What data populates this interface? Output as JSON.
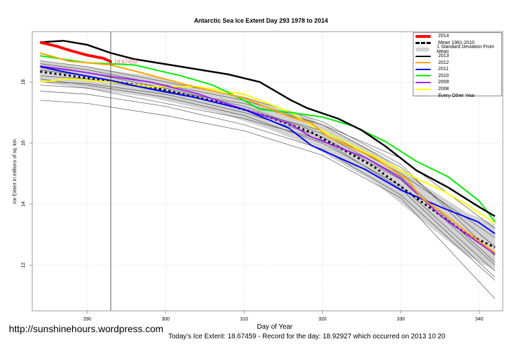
{
  "chart_data": {
    "type": "line",
    "title": "Antarctic Sea Ice Extent Day 293 1978 to 2014",
    "xlabel": "Day of Year",
    "ylabel": "Ice Extent in millions of sq. km.",
    "xlim": [
      283,
      343
    ],
    "ylim": [
      10.5,
      19.65
    ],
    "xticks": [
      290,
      300,
      310,
      320,
      330,
      340
    ],
    "yticks": [
      12,
      14,
      16,
      18
    ],
    "grid": true,
    "legend_position": "top-right",
    "current_day": 293,
    "current_value_label": "18.67459",
    "series": [
      {
        "name": "2014",
        "color": "#ff0000",
        "width": 4,
        "x": [
          284,
          286,
          288,
          290,
          292,
          293
        ],
        "y": [
          19.3,
          19.18,
          19.02,
          18.88,
          18.78,
          18.67
        ]
      },
      {
        "name": "2013",
        "color": "#000000",
        "width": 2.5,
        "x": [
          284,
          287,
          290,
          293,
          296,
          302,
          308,
          312,
          316,
          318,
          322,
          325,
          328,
          332,
          336,
          340,
          342
        ],
        "y": [
          19.3,
          19.35,
          19.22,
          18.95,
          18.75,
          18.5,
          18.25,
          18.0,
          17.4,
          17.15,
          16.8,
          16.42,
          15.9,
          15.1,
          14.55,
          13.9,
          13.6
        ]
      },
      {
        "name": "2012",
        "color": "#ffa500",
        "width": 2,
        "x": [
          284,
          287.7,
          293,
          298,
          304,
          310,
          315.7,
          318.6,
          320.7,
          326.6,
          331,
          332.5,
          335.4,
          338.3,
          342
        ],
        "y": [
          18.95,
          18.68,
          18.56,
          18.23,
          17.82,
          17.48,
          16.87,
          16.65,
          16.2,
          15.52,
          14.77,
          14.23,
          13.7,
          13.1,
          12.4
        ]
      },
      {
        "name": "2011",
        "color": "#0000ff",
        "width": 2,
        "x": [
          284,
          287.7,
          293,
          298,
          304,
          310,
          315.7,
          318.6,
          325.5,
          330,
          335.4,
          339.8,
          342
        ],
        "y": [
          18.5,
          18.3,
          18.05,
          17.77,
          17.48,
          17.1,
          16.49,
          15.92,
          15.13,
          14.46,
          13.87,
          13.42,
          13.03
        ]
      },
      {
        "name": "2010",
        "color": "#00ee00",
        "width": 2,
        "x": [
          284,
          290,
          296,
          302,
          306,
          310,
          312,
          316,
          320,
          324,
          328,
          332,
          336,
          340,
          342
        ],
        "y": [
          18.86,
          18.63,
          18.56,
          18.2,
          17.9,
          17.4,
          17.1,
          17.0,
          16.85,
          16.55,
          16.05,
          15.4,
          14.9,
          14.1,
          13.42
        ]
      },
      {
        "name": "2009",
        "color": "#a020f0",
        "width": 2,
        "x": [
          284,
          287.7,
          293,
          298,
          304,
          310,
          315.7,
          318.6,
          325.5,
          330,
          335.4,
          342
        ],
        "y": [
          18.52,
          18.4,
          18.18,
          18.0,
          17.62,
          17.1,
          16.65,
          16.2,
          15.52,
          14.84,
          13.55,
          12.36
        ]
      },
      {
        "name": "2008",
        "color": "#ffff00",
        "width": 2,
        "x": [
          284,
          287.7,
          293,
          298,
          304,
          310,
          315.7,
          318.6,
          326.6,
          332.5,
          335.4,
          338.3,
          342
        ],
        "y": [
          18.0,
          18.1,
          18.0,
          17.85,
          17.85,
          17.6,
          17.03,
          16.58,
          15.56,
          14.77,
          14.43,
          14.0,
          13.37
        ]
      }
    ],
    "mean": {
      "name": "Mean 1981-2010",
      "x": [
        284,
        298,
        307,
        313,
        318.6,
        326.6,
        332.5,
        338.3,
        342
      ],
      "y": [
        18.34,
        17.85,
        17.32,
        16.87,
        16.35,
        15.22,
        14.1,
        13.03,
        12.58
      ],
      "sd": [
        0.35,
        0.35,
        0.35,
        0.4,
        0.45,
        0.5,
        0.6,
        0.7,
        0.75
      ]
    },
    "sd_label": "1 Standard Deviation From Mean",
    "other_years_label": "Every Other Year",
    "other_years": [
      {
        "x": [
          284,
          290,
          300,
          310,
          320,
          330,
          342
        ],
        "y": [
          17.4,
          17.3,
          16.9,
          16.4,
          15.6,
          14.2,
          10.9
        ]
      },
      {
        "x": [
          284,
          290,
          300,
          310,
          320,
          330,
          342
        ],
        "y": [
          17.7,
          17.6,
          17.2,
          16.6,
          15.8,
          14.3,
          11.5
        ]
      },
      {
        "x": [
          284,
          290,
          300,
          310,
          320,
          330,
          342
        ],
        "y": [
          18.1,
          17.9,
          17.5,
          16.9,
          16.0,
          14.6,
          11.8
        ]
      },
      {
        "x": [
          284,
          290,
          300,
          310,
          320,
          330,
          342
        ],
        "y": [
          18.5,
          18.3,
          17.8,
          17.2,
          16.3,
          14.9,
          12.1
        ]
      },
      {
        "x": [
          284,
          290,
          300,
          310,
          320,
          330,
          342
        ],
        "y": [
          18.6,
          18.4,
          17.9,
          17.4,
          16.6,
          15.2,
          12.6
        ]
      },
      {
        "x": [
          284,
          290,
          300,
          310,
          320,
          330,
          342
        ],
        "y": [
          18.2,
          18.1,
          17.7,
          17.1,
          16.4,
          15.0,
          12.9
        ]
      },
      {
        "x": [
          284,
          290,
          300,
          310,
          320,
          330,
          342
        ],
        "y": [
          18.4,
          18.2,
          17.7,
          17.3,
          16.6,
          15.5,
          13.2
        ]
      },
      {
        "x": [
          284,
          290,
          300,
          310,
          320,
          330,
          342
        ],
        "y": [
          18.7,
          18.5,
          18.0,
          17.5,
          16.7,
          15.3,
          12.3
        ]
      },
      {
        "x": [
          284,
          290,
          300,
          310,
          320,
          330,
          342
        ],
        "y": [
          17.9,
          17.8,
          17.3,
          16.8,
          16.1,
          14.5,
          11.6
        ]
      },
      {
        "x": [
          284,
          290,
          300,
          310,
          320,
          330,
          342
        ],
        "y": [
          18.0,
          17.95,
          17.6,
          17.0,
          16.2,
          14.8,
          12.0
        ]
      }
    ]
  },
  "watermark_url": "http://sunshinehours.wordpress.com",
  "footer": "Today's Ice Extent: 18.67459  - Record for the day: 18.92927 which occurred on 2013 10 20"
}
